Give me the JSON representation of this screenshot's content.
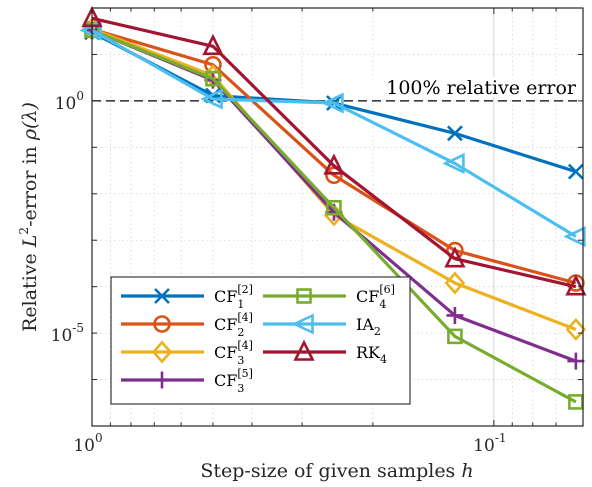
{
  "chart_data": {
    "type": "line",
    "xscale": "log",
    "yscale": "log",
    "xlim": [
      1,
      0.06
    ],
    "ylim": [
      1e-07,
      100.0
    ],
    "x_direction": "reversed",
    "grid": true,
    "xlabel": {
      "pre": "Step-size of given samples ",
      "var": "h"
    },
    "ylabel": {
      "pre": "Relative ",
      "L": "L",
      "sup": "2",
      "post": "-error in ",
      "rho": "ρ(λ)"
    },
    "x_ticks": [
      {
        "value": 1,
        "base": "10",
        "exp": "0"
      },
      {
        "value": 0.1,
        "base": "10",
        "exp": "-1"
      }
    ],
    "y_ticks": [
      {
        "value": 1,
        "base": "10",
        "exp": "0"
      },
      {
        "value": 1e-05,
        "base": "10",
        "exp": "-5"
      }
    ],
    "reference_line": {
      "y": 1,
      "label": "100% relative error"
    },
    "legend_position": "bottom-left",
    "x": [
      1,
      0.5,
      0.25,
      0.125,
      0.0625
    ],
    "series": [
      {
        "name_base": "CF",
        "sub": "1",
        "sup": "[2]",
        "color": "#0072BD",
        "marker": "x",
        "values": [
          30,
          1.3,
          0.9,
          0.2,
          0.03
        ]
      },
      {
        "name_base": "CF",
        "sub": "2",
        "sup": "[4]",
        "color": "#D95319",
        "marker": "circle",
        "values": [
          35,
          6,
          0.025,
          0.0006,
          0.00012
        ]
      },
      {
        "name_base": "CF",
        "sub": "3",
        "sup": "[4]",
        "color": "#EDB120",
        "marker": "diamond",
        "values": [
          35,
          3.5,
          0.0035,
          0.00012,
          1.2e-05
        ]
      },
      {
        "name_base": "CF",
        "sub": "3",
        "sup": "[5]",
        "color": "#7E2F8E",
        "marker": "plus",
        "values": [
          33,
          2.8,
          0.004,
          2.4e-05,
          2.5e-06
        ]
      },
      {
        "name_base": "CF",
        "sub": "4",
        "sup": "[6]",
        "color": "#77AC30",
        "marker": "square",
        "values": [
          33,
          3.0,
          0.005,
          8.5e-06,
          3.3e-07
        ]
      },
      {
        "name_base": "IA",
        "sub": "2",
        "sup": "",
        "color": "#4DBEEE",
        "marker": "triangle-left",
        "values": [
          33,
          1.1,
          0.9,
          0.045,
          0.0012
        ]
      },
      {
        "name_base": "RK",
        "sub": "4",
        "sup": "",
        "color": "#A2142F",
        "marker": "triangle-up",
        "values": [
          60,
          15,
          0.04,
          0.0004,
          0.0001
        ]
      }
    ]
  }
}
